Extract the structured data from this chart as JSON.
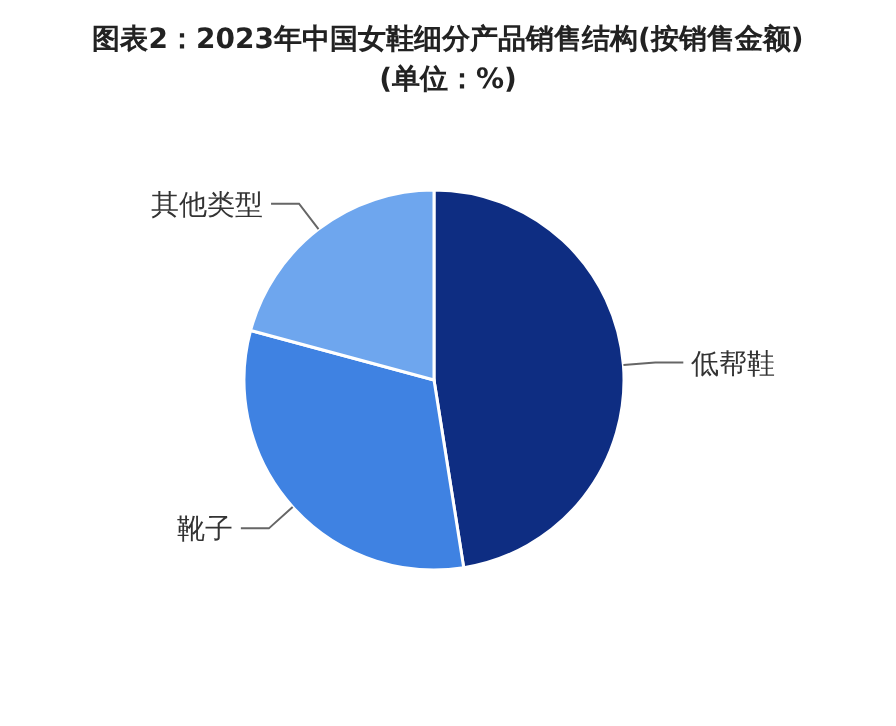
{
  "chart_data": {
    "type": "pie",
    "title": "图表2：2023年中国女鞋细分产品销售结构(按销售金额)",
    "subtitle": "(单位：%)",
    "categories": [
      "低帮鞋",
      "靴子",
      "其他类型"
    ],
    "values": [
      47.5,
      31.7,
      20.8
    ],
    "colors": [
      "#0e2d82",
      "#3f82e2",
      "#6ea6ee"
    ]
  }
}
